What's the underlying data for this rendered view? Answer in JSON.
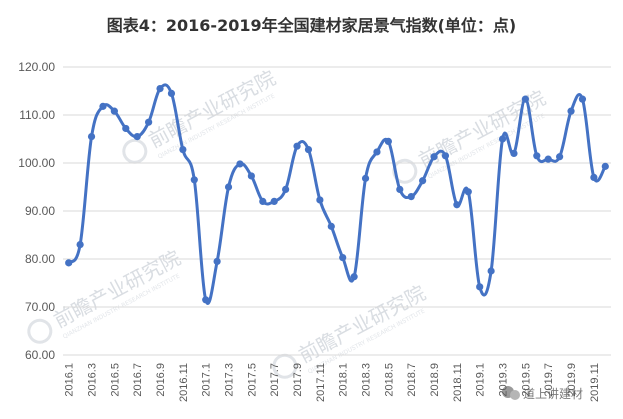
{
  "title": "图表4：2016-2019年全国建材家居景气指数(单位：点)",
  "watermark": {
    "brand": "前瞻产业研究院",
    "sub": "QIANZHAN INDUSTRY RESEARCH INSTITUTE",
    "wechat_label": "道上讲建材"
  },
  "colors": {
    "series": "#4472c4",
    "grid": "#d9d9d9",
    "axis_text": "#595959",
    "title": "#333333"
  },
  "chart_data": {
    "type": "line",
    "title": "图表4：2016-2019年全国建材家居景气指数(单位：点)",
    "xlabel": "",
    "ylabel": "",
    "ylim": [
      60,
      120
    ],
    "yticks": [
      "60.00",
      "70.00",
      "80.00",
      "90.00",
      "100.00",
      "110.00",
      "120.00"
    ],
    "grid": true,
    "legend": "none",
    "smooth": true,
    "x": [
      "2016.1",
      "2016.2",
      "2016.3",
      "2016.4",
      "2016.5",
      "2016.6",
      "2016.7",
      "2016.8",
      "2016.9",
      "2016.10",
      "2016.11",
      "2016.12",
      "2017.1",
      "2017.2",
      "2017.3",
      "2017.4",
      "2017.5",
      "2017.6",
      "2017.7",
      "2017.8",
      "2017.9",
      "2017.10",
      "2017.11",
      "2017.12",
      "2018.1",
      "2018.2",
      "2018.3",
      "2018.4",
      "2018.5",
      "2018.6",
      "2018.7",
      "2018.8",
      "2018.9",
      "2018.10",
      "2018.11",
      "2018.12",
      "2019.1",
      "2019.2",
      "2019.3",
      "2019.4",
      "2019.5",
      "2019.6",
      "2019.7",
      "2019.8",
      "2019.9",
      "2019.10",
      "2019.11",
      "2019.12"
    ],
    "x_tick_labels": [
      "2016.1",
      "2016.3",
      "2016.5",
      "2016.7",
      "2016.9",
      "2016.11",
      "2017.1",
      "2017.3",
      "2017.5",
      "2017.7",
      "2017.9",
      "2017.11",
      "2018.1",
      "2018.3",
      "2018.5",
      "2018.7",
      "2018.9",
      "2018.11",
      "2019.1",
      "2019.3",
      "2019.5",
      "2019.7",
      "2019.9",
      "2019.11"
    ],
    "series": [
      {
        "values": [
          79.2,
          83.0,
          105.5,
          111.8,
          110.8,
          107.2,
          105.5,
          108.5,
          115.5,
          114.5,
          102.8,
          96.5,
          71.5,
          79.5,
          95.0,
          99.8,
          97.3,
          92.0,
          92.0,
          94.5,
          103.5,
          102.8,
          92.3,
          86.8,
          80.3,
          76.3,
          96.8,
          102.3,
          104.5,
          94.5,
          93.0,
          96.3,
          101.3,
          101.5,
          91.3,
          94.0,
          74.2,
          77.5,
          105.0,
          102.0,
          113.3,
          101.5,
          100.8,
          101.3,
          110.8,
          113.3,
          97.0,
          99.3
        ]
      }
    ]
  }
}
